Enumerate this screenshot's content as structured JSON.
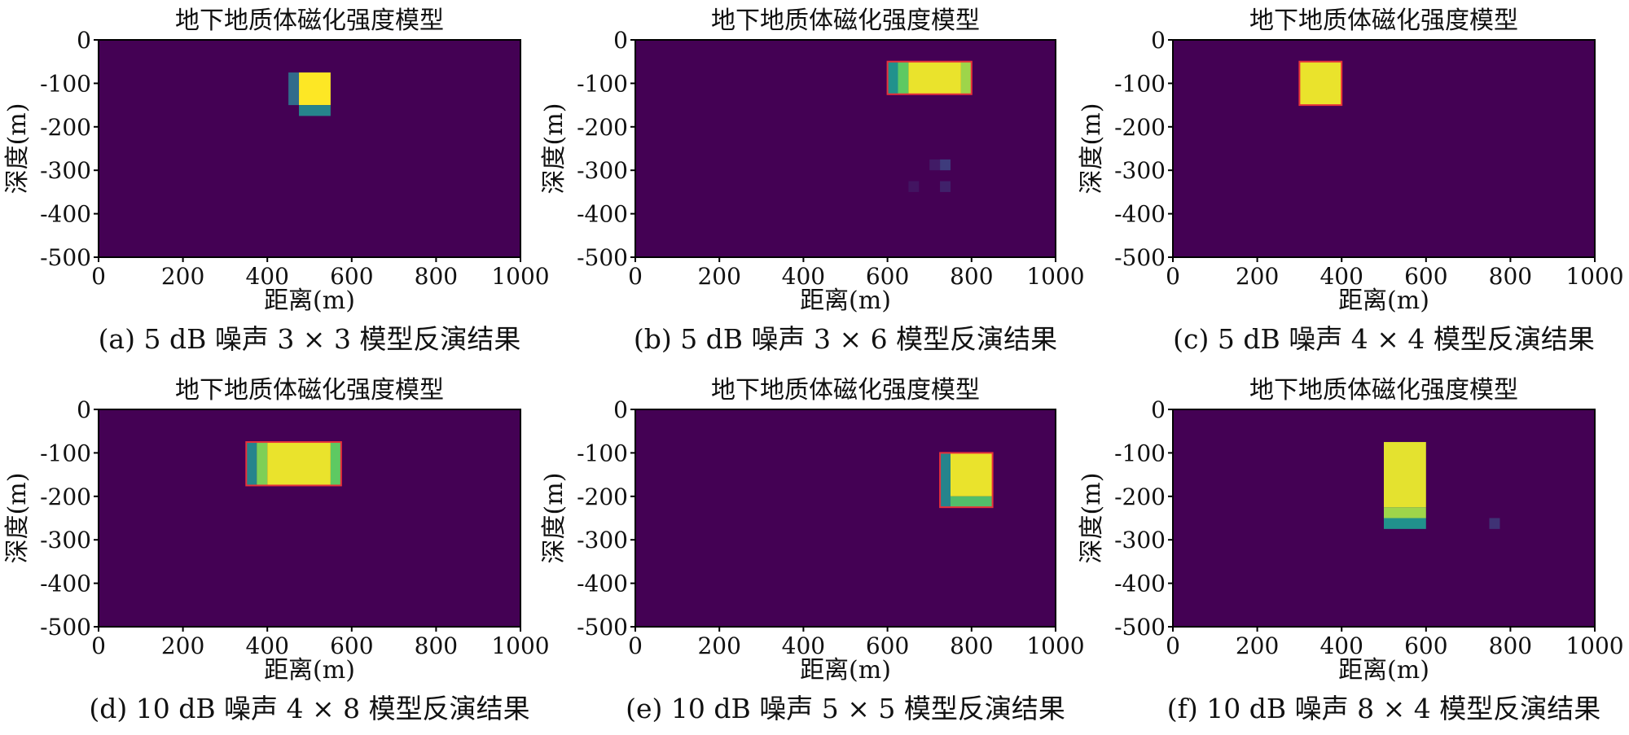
{
  "colors": {
    "background_cell": "#440154",
    "colormap": [
      "#440154",
      "#3b528b",
      "#21918c",
      "#5ec962",
      "#fde725"
    ],
    "outline": "#e8313a"
  },
  "chart_data": [
    {
      "type": "heatmap",
      "title": "地下地质体磁化强度模型",
      "xlabel": "距离(m)",
      "ylabel": "深度(m)",
      "xlim": [
        0,
        1000
      ],
      "ylim": [
        -500,
        0
      ],
      "xticks": [
        "0",
        "200",
        "400",
        "800",
        "1000",
        "600"
      ],
      "yticks": [
        "0",
        "-100",
        "-200",
        "-300",
        "-400",
        "-500"
      ],
      "caption": "(a) 5 dB 噪声 3 × 3 模型反演结果",
      "outline": null,
      "cells": [
        {
          "x0": 450,
          "x1": 475,
          "y0": -75,
          "y1": -150,
          "v": 0.35
        },
        {
          "x0": 475,
          "x1": 550,
          "y0": -75,
          "y1": -150,
          "v": 1.0
        },
        {
          "x0": 475,
          "x1": 550,
          "y0": -150,
          "y1": -175,
          "v": 0.45
        }
      ]
    },
    {
      "type": "heatmap",
      "title": "地下地质体磁化强度模型",
      "xlabel": "距离(m)",
      "ylabel": "深度(m)",
      "xlim": [
        0,
        1000
      ],
      "ylim": [
        -500,
        0
      ],
      "xticks": [
        "0",
        "200",
        "400",
        "600",
        "800",
        "1000"
      ],
      "yticks": [
        "0",
        "-100",
        "-200",
        "-300",
        "-400",
        "-500"
      ],
      "caption": "(b) 5 dB 噪声 3 × 6 模型反演结果",
      "outline": {
        "x0": 600,
        "x1": 800,
        "y0": -50,
        "y1": -125
      },
      "cells": [
        {
          "x0": 600,
          "x1": 625,
          "y0": -50,
          "y1": -125,
          "v": 0.5
        },
        {
          "x0": 625,
          "x1": 650,
          "y0": -50,
          "y1": -125,
          "v": 0.75
        },
        {
          "x0": 650,
          "x1": 775,
          "y0": -50,
          "y1": -125,
          "v": 0.97
        },
        {
          "x0": 775,
          "x1": 800,
          "y0": -50,
          "y1": -125,
          "v": 0.85
        },
        {
          "x0": 700,
          "x1": 725,
          "y0": -275,
          "y1": -300,
          "v": 0.08
        },
        {
          "x0": 725,
          "x1": 750,
          "y0": -275,
          "y1": -300,
          "v": 0.18
        },
        {
          "x0": 650,
          "x1": 675,
          "y0": -325,
          "y1": -350,
          "v": 0.06
        },
        {
          "x0": 725,
          "x1": 750,
          "y0": -325,
          "y1": -350,
          "v": 0.1
        }
      ]
    },
    {
      "type": "heatmap",
      "title": "地下地质体磁化强度模型",
      "xlabel": "距离(m)",
      "ylabel": "深度(m)",
      "xlim": [
        0,
        1000
      ],
      "ylim": [
        -500,
        0
      ],
      "xticks": [
        "0",
        "200",
        "400",
        "600",
        "800",
        "1000"
      ],
      "yticks": [
        "0",
        "-100",
        "-200",
        "-300",
        "-400",
        "-500"
      ],
      "caption": "(c) 5 dB 噪声 4 × 4 模型反演结果",
      "outline": {
        "x0": 300,
        "x1": 400,
        "y0": -50,
        "y1": -150
      },
      "cells": [
        {
          "x0": 300,
          "x1": 400,
          "y0": -50,
          "y1": -150,
          "v": 0.97
        }
      ]
    },
    {
      "type": "heatmap",
      "title": "地下地质体磁化强度模型",
      "xlabel": "距离(m)",
      "ylabel": "深度(m)",
      "xlim": [
        0,
        1000
      ],
      "ylim": [
        -500,
        0
      ],
      "xticks": [
        "0",
        "200",
        "400",
        "600",
        "800",
        "1000"
      ],
      "yticks": [
        "0",
        "-100",
        "-200",
        "-300",
        "-400",
        "-500"
      ],
      "caption": "(d) 10 dB 噪声 4 × 8 模型反演结果",
      "outline": {
        "x0": 350,
        "x1": 575,
        "y0": -75,
        "y1": -175
      },
      "cells": [
        {
          "x0": 350,
          "x1": 375,
          "y0": -75,
          "y1": -175,
          "v": 0.45
        },
        {
          "x0": 375,
          "x1": 400,
          "y0": -75,
          "y1": -175,
          "v": 0.8
        },
        {
          "x0": 400,
          "x1": 550,
          "y0": -75,
          "y1": -175,
          "v": 0.97
        },
        {
          "x0": 550,
          "x1": 575,
          "y0": -75,
          "y1": -175,
          "v": 0.75
        }
      ]
    },
    {
      "type": "heatmap",
      "title": "地下地质体磁化强度模型",
      "xlabel": "距离(m)",
      "ylabel": "深度(m)",
      "xlim": [
        0,
        1000
      ],
      "ylim": [
        -500,
        0
      ],
      "xticks": [
        "0",
        "200",
        "400",
        "600",
        "800",
        "1000"
      ],
      "yticks": [
        "0",
        "-100",
        "-200",
        "-300",
        "-400",
        "-500"
      ],
      "caption": "(e) 10 dB 噪声 5 × 5 模型反演结果",
      "outline": {
        "x0": 725,
        "x1": 850,
        "y0": -100,
        "y1": -225
      },
      "cells": [
        {
          "x0": 725,
          "x1": 750,
          "y0": -100,
          "y1": -225,
          "v": 0.45
        },
        {
          "x0": 750,
          "x1": 850,
          "y0": -100,
          "y1": -200,
          "v": 0.97
        },
        {
          "x0": 750,
          "x1": 850,
          "y0": -200,
          "y1": -225,
          "v": 0.7
        }
      ]
    },
    {
      "type": "heatmap",
      "title": "地下地质体磁化强度模型",
      "xlabel": "距离(m)",
      "ylabel": "深度(m)",
      "xlim": [
        0,
        1000
      ],
      "ylim": [
        -500,
        0
      ],
      "xticks": [
        "0",
        "200",
        "400",
        "600",
        "800",
        "1000"
      ],
      "yticks": [
        "0",
        "-100",
        "-200",
        "-300",
        "-400",
        "-500"
      ],
      "caption": "(f) 10 dB 噪声 8 × 4 模型反演结果",
      "outline": null,
      "cells": [
        {
          "x0": 500,
          "x1": 600,
          "y0": -75,
          "y1": -225,
          "v": 0.96
        },
        {
          "x0": 500,
          "x1": 600,
          "y0": -225,
          "y1": -250,
          "v": 0.85
        },
        {
          "x0": 500,
          "x1": 600,
          "y0": -250,
          "y1": -275,
          "v": 0.5
        },
        {
          "x0": 750,
          "x1": 775,
          "y0": -250,
          "y1": -275,
          "v": 0.15
        }
      ]
    }
  ]
}
